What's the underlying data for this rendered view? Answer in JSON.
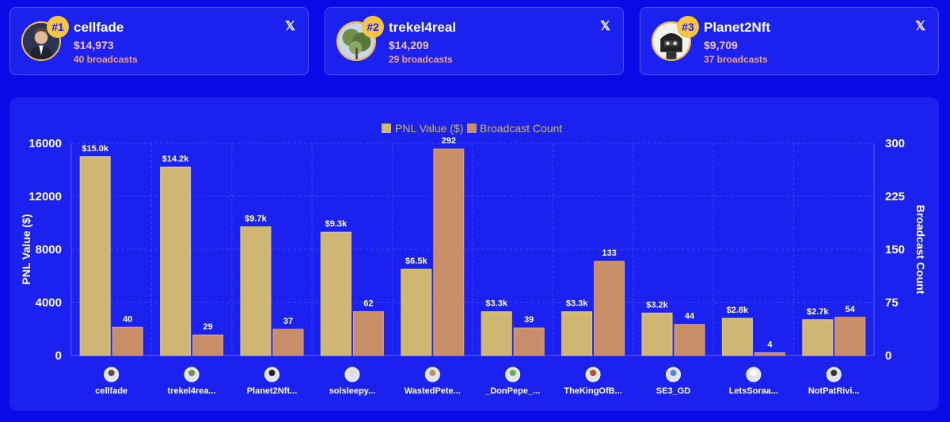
{
  "top_cards": [
    {
      "rank": "#1",
      "name": "cellfade",
      "value": "$14,973",
      "broadcasts": "40 broadcasts",
      "avatar_icon": "avatar-man-suit-icon",
      "x_icon": "𝕏"
    },
    {
      "rank": "#2",
      "name": "trekel4real",
      "value": "$14,209",
      "broadcasts": "29 broadcasts",
      "avatar_icon": "avatar-tree-icon",
      "x_icon": "𝕏"
    },
    {
      "rank": "#3",
      "name": "Planet2Nft",
      "value": "$9,709",
      "broadcasts": "37 broadcasts",
      "avatar_icon": "avatar-robot-icon",
      "x_icon": "𝕏"
    }
  ],
  "chart_data": {
    "type": "bar",
    "legend": {
      "placement": "top-center",
      "pnl_label": "PNL Value ($)",
      "count_label": "Broadcast Count"
    },
    "ylabel_left": "PNL Value ($)",
    "ylabel_right": "Broadcast Count",
    "ylim_left": [
      0,
      16000
    ],
    "ylim_right": [
      0,
      300
    ],
    "yticks_left": [
      "0",
      "4000",
      "8000",
      "12000",
      "16000"
    ],
    "yticks_right": [
      "0",
      "75",
      "150",
      "225",
      "300"
    ],
    "grid": true,
    "categories": [
      "cellfade",
      "trekel4rea...",
      "Planet2Nft...",
      "solsleepy...",
      "WastedPete...",
      "_DonPepe_...",
      "TheKingOfB...",
      "SE3_GD",
      "LetsSoraa...",
      "NotPatRivi..."
    ],
    "series": [
      {
        "name": "PNL Value ($)",
        "axis": "left",
        "color": "#cfb673",
        "values": [
          15000,
          14200,
          9700,
          9300,
          6500,
          3300,
          3300,
          3200,
          2800,
          2700
        ],
        "labels": [
          "$15.0k",
          "$14.2k",
          "$9.7k",
          "$9.3k",
          "$6.5k",
          "$3.3k",
          "$3.3k",
          "$3.2k",
          "$2.8k",
          "$2.7k"
        ]
      },
      {
        "name": "Broadcast Count",
        "axis": "right",
        "color": "#c88e68",
        "values": [
          40,
          29,
          37,
          62,
          292,
          39,
          133,
          44,
          4,
          54
        ],
        "labels": [
          "40",
          "29",
          "37",
          "62",
          "292",
          "39",
          "133",
          "44",
          "4",
          "54"
        ]
      }
    ],
    "category_icons": [
      "avatar-man-suit-icon",
      "avatar-tree-icon",
      "avatar-robot-icon",
      "avatar-cat-icon",
      "avatar-gingerbread-icon",
      "avatar-pepe-icon",
      "avatar-lion-icon",
      "avatar-landscape-icon",
      "avatar-smiley-icon",
      "avatar-dog-icon"
    ]
  }
}
